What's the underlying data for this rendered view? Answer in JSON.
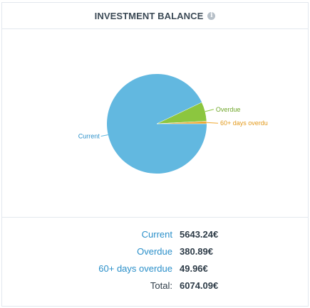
{
  "widget": {
    "title": "INVESTMENT BALANCE",
    "info_icon": "info-icon"
  },
  "chart_data": {
    "type": "pie",
    "slices": [
      {
        "label": "Current",
        "value": 5643.24,
        "color": "#62b8e0",
        "label_color": "#2a8fc9"
      },
      {
        "label": "Overdue",
        "value": 380.89,
        "color": "#8cc63f",
        "label_color": "#6fa62a"
      },
      {
        "label": "60+ days overdue",
        "value": 49.96,
        "color": "#f0a830",
        "label_color": "#e39a1c"
      }
    ],
    "chart_labels": [
      "Current",
      "Overdue",
      "60+ days overdu"
    ]
  },
  "summary": {
    "rows": [
      {
        "label": "Current",
        "value": "5643.24€",
        "link": true
      },
      {
        "label": "Overdue",
        "value": "380.89€",
        "link": true
      },
      {
        "label": "60+ days overdue",
        "value": "49.96€",
        "link": true
      },
      {
        "label": "Total:",
        "value": "6074.09€",
        "link": false
      }
    ]
  }
}
